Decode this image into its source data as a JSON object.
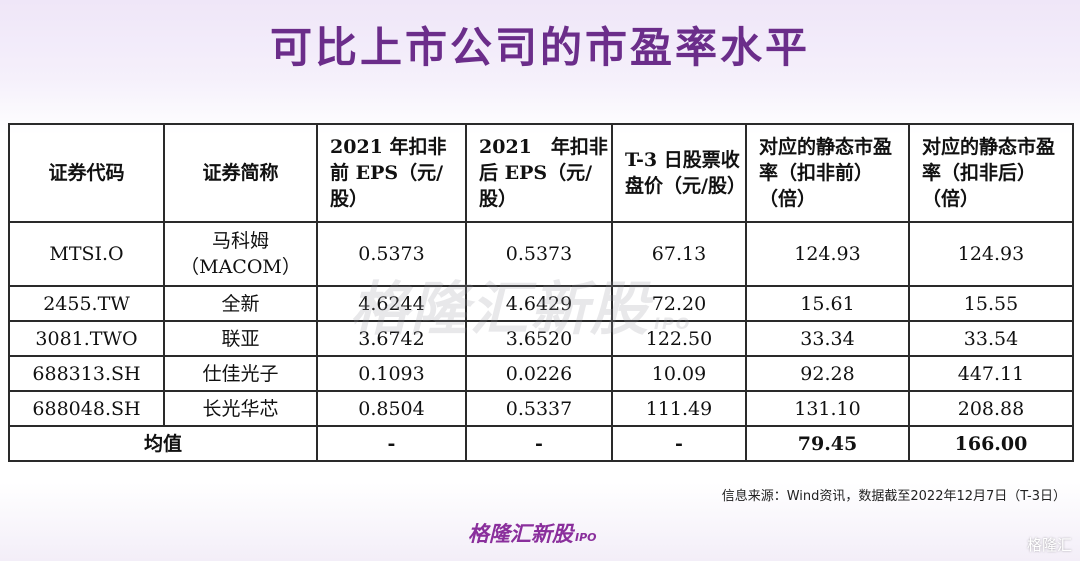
{
  "title": "可比上市公司的市盈率水平",
  "table": {
    "headers": [
      "证券代码",
      "证券简称",
      "2021 年扣非前 EPS（元/股）",
      "2021　年扣非后 EPS（元/股）",
      "T-3 日股票收盘价（元/股）",
      "对应的静态市盈率（扣非前）（倍）",
      "对应的静态市盈率（扣非后）（倍）"
    ],
    "rows": [
      [
        "MTSI.O",
        "马科姆（MACOM）",
        "0.5373",
        "0.5373",
        "67.13",
        "124.93",
        "124.93"
      ],
      [
        "2455.TW",
        "全新",
        "4.6244",
        "4.6429",
        "72.20",
        "15.61",
        "15.55"
      ],
      [
        "3081.TWO",
        "联亚",
        "3.6742",
        "3.6520",
        "122.50",
        "33.34",
        "33.54"
      ],
      [
        "688313.SH",
        "仕佳光子",
        "0.1093",
        "0.0226",
        "10.09",
        "92.28",
        "447.11"
      ],
      [
        "688048.SH",
        "长光华芯",
        "0.8504",
        "0.5337",
        "111.49",
        "131.10",
        "208.88"
      ]
    ],
    "average": {
      "label": "均值",
      "values": [
        "-",
        "-",
        "-",
        "79.45",
        "166.00"
      ]
    }
  },
  "source": "信息来源：Wind资讯，数据截至2022年12月7日（T-3日）",
  "watermark": {
    "text": "格隆汇新股",
    "tag": "IPO"
  },
  "logo": {
    "text": "格隆汇新股",
    "tag": "IPO"
  },
  "corner_mark": "格隆汇"
}
